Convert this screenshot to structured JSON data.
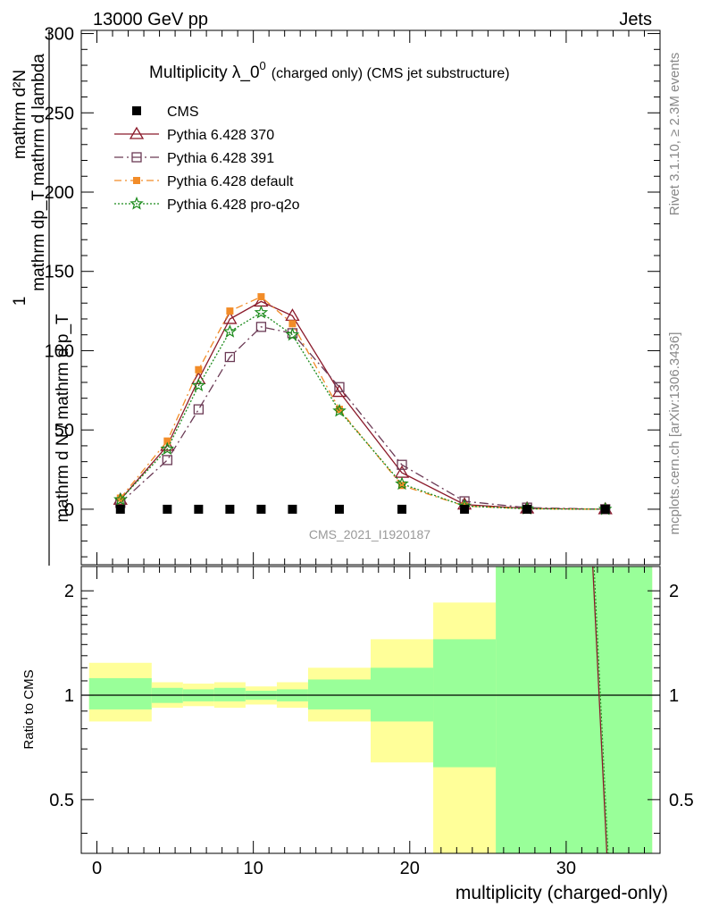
{
  "header": {
    "energy_label": "13000 GeV pp",
    "process_label": "Jets"
  },
  "side_labels": {
    "rivet": "Rivet 3.1.10, ≥ 2.3M events",
    "mcplots": "mcplots.cern.ch [arXiv:1306.3436]"
  },
  "main_plot": {
    "title_main": "Multiplicity λ_0",
    "title_sup": "0",
    "title_tail": "(charged only) (CMS jet substructure)",
    "ylabel_numerator": "mathrm d²N",
    "ylabel_numerator_sub": "T",
    "ylabel_numerator_full": "mathrm dp_T mathrm d lambda",
    "ylabel_denominator": "mathrm d N / mathrm d p_T",
    "ylabel_one": "1",
    "analysis_tag": "CMS_2021_I1920187",
    "yticks": [
      "0",
      "50",
      "100",
      "150",
      "200",
      "250",
      "300"
    ]
  },
  "ratio_plot": {
    "ylabel": "Ratio to CMS",
    "yticks": [
      "0.5",
      "1",
      "2"
    ]
  },
  "xaxis": {
    "label": "multiplicity (charged-only)",
    "ticks": [
      "0",
      "10",
      "20",
      "30"
    ]
  },
  "legend": [
    {
      "name": "CMS",
      "color": "#000000",
      "marker": "filled-square"
    },
    {
      "name": "Pythia 6.428 370",
      "color": "#8b1a2b",
      "marker": "open-triangle"
    },
    {
      "name": "Pythia 6.428 391",
      "color": "#6b3a55",
      "marker": "open-square"
    },
    {
      "name": "Pythia 6.428 default",
      "color": "#f28c28",
      "marker": "filled-square-small"
    },
    {
      "name": "Pythia 6.428 pro-q2o",
      "color": "#1a8a1a",
      "marker": "star"
    }
  ],
  "chart_data": {
    "type": "line",
    "title": "Multiplicity λ_0^0 (charged only) (CMS jet substructure)",
    "xlabel": "multiplicity (charged-only)",
    "ylabel": "1 / mathrm d N / mathrm d p_T  mathrm d²N / mathrm d p_T mathrm d lambda",
    "xlim": [
      -1,
      36
    ],
    "ylim": [
      -35,
      302
    ],
    "x": [
      1.5,
      4.5,
      6.5,
      8.5,
      10.5,
      12.5,
      15.5,
      19.5,
      23.5,
      27.5,
      32.5
    ],
    "series": [
      {
        "name": "CMS",
        "values": [
          0,
          0,
          0,
          0,
          0,
          0,
          0,
          0,
          0,
          0,
          0
        ]
      },
      {
        "name": "Pythia 6.428 370",
        "values": [
          6,
          40,
          82,
          120,
          131,
          122,
          74,
          23,
          3,
          0.5,
          0
        ]
      },
      {
        "name": "Pythia 6.428 391",
        "values": [
          4,
          31,
          63,
          96,
          115,
          111,
          77,
          28,
          5,
          1,
          0
        ]
      },
      {
        "name": "Pythia 6.428 default",
        "values": [
          7,
          43,
          88,
          125,
          134,
          117,
          63,
          15,
          2,
          0.3,
          0
        ]
      },
      {
        "name": "Pythia 6.428 pro-q2o",
        "values": [
          6,
          38,
          78,
          112,
          124,
          110,
          62,
          16,
          2,
          0.3,
          0
        ]
      }
    ],
    "ratio": {
      "ylabel": "Ratio to CMS",
      "ylim": [
        0.35,
        2.35
      ],
      "log_scale": true,
      "bins": [
        {
          "lo": -0.5,
          "hi": 3.5,
          "yellow": [
            0.84,
            1.24
          ],
          "green": [
            0.91,
            1.12
          ]
        },
        {
          "lo": 3.5,
          "hi": 5.5,
          "yellow": [
            0.92,
            1.09
          ],
          "green": [
            0.95,
            1.05
          ]
        },
        {
          "lo": 5.5,
          "hi": 7.5,
          "yellow": [
            0.93,
            1.08
          ],
          "green": [
            0.96,
            1.04
          ]
        },
        {
          "lo": 7.5,
          "hi": 9.5,
          "yellow": [
            0.92,
            1.09
          ],
          "green": [
            0.96,
            1.05
          ]
        },
        {
          "lo": 9.5,
          "hi": 11.5,
          "yellow": [
            0.94,
            1.06
          ],
          "green": [
            0.97,
            1.03
          ]
        },
        {
          "lo": 11.5,
          "hi": 13.5,
          "yellow": [
            0.92,
            1.09
          ],
          "green": [
            0.96,
            1.04
          ]
        },
        {
          "lo": 13.5,
          "hi": 17.5,
          "yellow": [
            0.84,
            1.2
          ],
          "green": [
            0.91,
            1.11
          ]
        },
        {
          "lo": 17.5,
          "hi": 21.5,
          "yellow": [
            0.64,
            1.45
          ],
          "green": [
            0.84,
            1.2
          ]
        },
        {
          "lo": 21.5,
          "hi": 25.5,
          "yellow": [
            0.35,
            1.85
          ],
          "green": [
            0.62,
            1.45
          ]
        },
        {
          "lo": 25.5,
          "hi": 35.5,
          "yellow": [
            0.35,
            2.35
          ],
          "green": [
            0.35,
            2.35
          ]
        }
      ],
      "steep_line": {
        "x_top": 31.7,
        "x_bottom": 32.6
      }
    }
  }
}
